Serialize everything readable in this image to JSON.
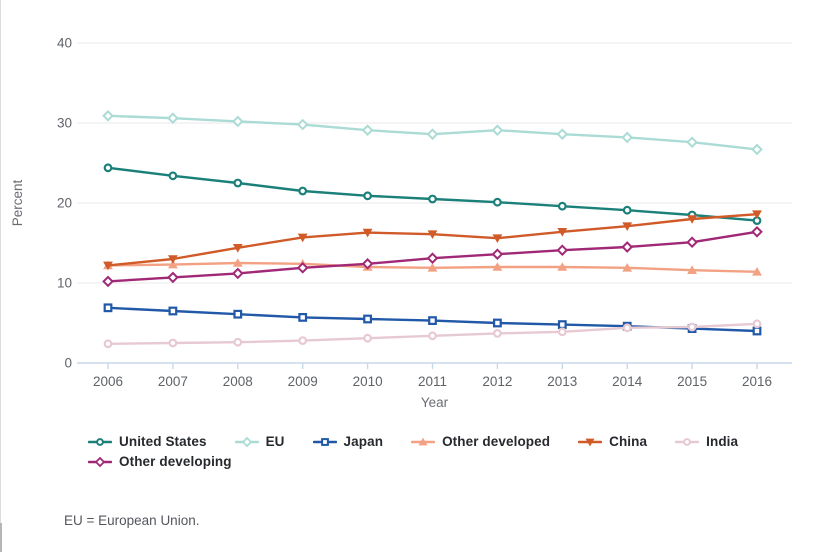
{
  "chart_data": {
    "type": "line",
    "title": "",
    "xlabel": "Year",
    "ylabel": "Percent",
    "x": [
      2006,
      2007,
      2008,
      2009,
      2010,
      2011,
      2012,
      2013,
      2014,
      2015,
      2016
    ],
    "ylim": [
      0,
      40
    ],
    "yticks": [
      0,
      10,
      20,
      30,
      40
    ],
    "grid": "horizontal",
    "legend_position": "bottom",
    "series": [
      {
        "name": "United States",
        "color": "#1b8079",
        "marker": "circle-open",
        "values": [
          24.4,
          23.4,
          22.5,
          21.5,
          20.9,
          20.5,
          20.1,
          19.6,
          19.1,
          18.5,
          17.8
        ]
      },
      {
        "name": "EU",
        "color": "#abdbd5",
        "marker": "diamond-open",
        "values": [
          30.9,
          30.6,
          30.2,
          29.8,
          29.1,
          28.6,
          29.1,
          28.6,
          28.2,
          27.6,
          26.7
        ]
      },
      {
        "name": "Japan",
        "color": "#2159a8",
        "marker": "square-open",
        "values": [
          6.9,
          6.5,
          6.1,
          5.7,
          5.5,
          5.3,
          5.0,
          4.8,
          4.6,
          4.3,
          4.0
        ]
      },
      {
        "name": "Other developed",
        "color": "#f2a183",
        "marker": "triangle-up",
        "values": [
          12.2,
          12.3,
          12.5,
          12.4,
          12.0,
          11.9,
          12.0,
          12.0,
          11.9,
          11.6,
          11.4
        ]
      },
      {
        "name": "China",
        "color": "#d05a28",
        "marker": "triangle-down",
        "values": [
          12.2,
          13.0,
          14.4,
          15.7,
          16.3,
          16.1,
          15.6,
          16.4,
          17.1,
          18.0,
          18.6
        ]
      },
      {
        "name": "India",
        "color": "#e7c9d2",
        "marker": "circle-open",
        "values": [
          2.4,
          2.5,
          2.6,
          2.8,
          3.1,
          3.4,
          3.7,
          3.9,
          4.4,
          4.5,
          4.9
        ]
      },
      {
        "name": "Other developing",
        "color": "#a02876",
        "marker": "diamond-open",
        "values": [
          10.2,
          10.7,
          11.2,
          11.9,
          12.4,
          13.1,
          13.6,
          14.1,
          14.5,
          15.1,
          16.4
        ]
      }
    ],
    "footnote": "EU = European Union."
  },
  "style": {
    "gridline_color": "#e9e9eb",
    "axis_line_color": "#c9d7ea",
    "tick_label_color": "#5f6368",
    "axis_title_color": "#6a6e73",
    "legend_text_color": "#26292d",
    "background": "#ffffff"
  }
}
